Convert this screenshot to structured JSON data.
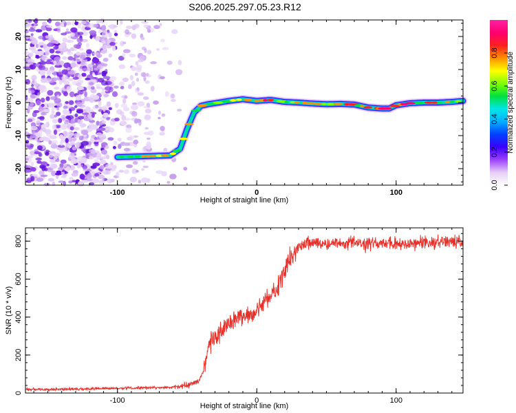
{
  "title": "S206.2025.297.05.23.R12",
  "chart_data": [
    {
      "type": "heatmap",
      "title": "S206.2025.297.05.23.R12",
      "xlabel": "Height of straight line (km)",
      "ylabel": "Frequency (Hz)",
      "xlim": [
        -166,
        148
      ],
      "ylim": [
        -25,
        25
      ],
      "xticks": [
        -100,
        0,
        100
      ],
      "yticks": [
        -20,
        -10,
        0,
        10,
        20
      ],
      "colorbar": {
        "label": "Normalized spectral amplitude",
        "range": [
          0,
          1
        ],
        "ticks": [
          "0.0",
          "0.2",
          "0.4",
          "0.6",
          "0.8"
        ],
        "colors": [
          "#ffffff",
          "#e6cdf5",
          "#9b40ff",
          "#3a00ff",
          "#0040ff",
          "#00b0ff",
          "#00e6e6",
          "#00e040",
          "#80ff00",
          "#ffff00",
          "#ff9000",
          "#ff2020",
          "#ff0070",
          "#ff20a0"
        ]
      },
      "ridge": {
        "x": [
          -100,
          -62,
          -55,
          -50,
          -45,
          -40,
          -35,
          -30,
          -20,
          -10,
          0,
          10,
          20,
          30,
          40,
          50,
          60,
          70,
          80,
          90,
          95,
          100,
          110,
          120,
          130,
          140,
          148
        ],
        "y": [
          -16.5,
          -16,
          -14,
          -8,
          -3,
          -1,
          -0.5,
          -0.2,
          0.5,
          1,
          0.5,
          0.8,
          0.2,
          0,
          -0.3,
          -0.5,
          -0.4,
          -0.6,
          -1.5,
          -1.8,
          -1.8,
          -0.8,
          -0.2,
          0,
          0,
          0.2,
          0.5
        ]
      }
    },
    {
      "type": "line",
      "xlabel": "Height of straight line (km)",
      "ylabel": "SNR (10 * v/v)",
      "xlim": [
        -166,
        148
      ],
      "ylim": [
        0,
        870
      ],
      "xticks": [
        -100,
        0,
        100
      ],
      "yticks": [
        0,
        200,
        400,
        600,
        800
      ],
      "series": [
        {
          "name": "SNR",
          "color": "#e8302a",
          "x": [
            -166,
            -140,
            -120,
            -100,
            -80,
            -60,
            -50,
            -42,
            -38,
            -35,
            -30,
            -25,
            -20,
            -15,
            -10,
            -5,
            0,
            5,
            10,
            15,
            20,
            25,
            30,
            35,
            40,
            50,
            60,
            70,
            80,
            90,
            100,
            110,
            120,
            130,
            140,
            148
          ],
          "y": [
            18,
            20,
            22,
            25,
            28,
            30,
            40,
            60,
            120,
            250,
            300,
            330,
            360,
            390,
            400,
            410,
            440,
            480,
            520,
            560,
            640,
            720,
            760,
            790,
            790,
            785,
            790,
            790,
            785,
            790,
            790,
            790,
            790,
            790,
            795,
            790
          ]
        }
      ]
    }
  ]
}
